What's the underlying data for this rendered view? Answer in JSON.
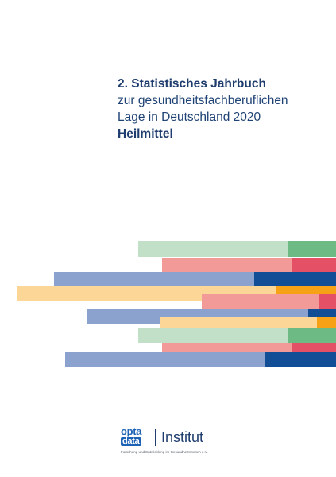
{
  "title": {
    "line1": "2. Statistisches Jahrbuch",
    "line2": "zur gesundheitsfachberuflichen",
    "line3": "Lage in Deutschland 2020",
    "line4": "Heilmittel"
  },
  "colors": {
    "navy_text": "#1e3d6e",
    "green_light": "#c2e0c8",
    "green_dark": "#6dba85",
    "pink_light": "#f19a98",
    "red_dark": "#e45066",
    "blue_light": "#8aa2cd",
    "blue_dark": "#124e96",
    "yellow_light": "#fbd696",
    "orange_dark": "#f6a116",
    "brand_blue": "#1d62b4"
  },
  "logo": {
    "mark_top": "opta",
    "mark_bottom": "data",
    "name": "Institut",
    "subtitle": "Forschung und Entwicklung im Gesundheitswesen e.V."
  }
}
